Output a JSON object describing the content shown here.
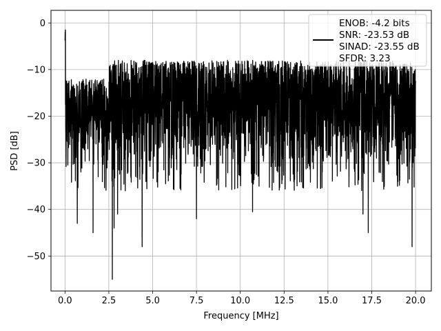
{
  "chart_data": {
    "type": "line",
    "title": "",
    "xlabel": "Frequency [MHz]",
    "ylabel": "PSD [dB]",
    "xlim": [
      -0.8,
      20.9
    ],
    "ylim": [
      -57.5,
      2.7
    ],
    "xticks": [
      0.0,
      2.5,
      5.0,
      7.5,
      10.0,
      12.5,
      15.0,
      17.5,
      20.0
    ],
    "xtick_labels": [
      "0.0",
      "2.5",
      "5.0",
      "7.5",
      "10.0",
      "12.5",
      "15.0",
      "17.5",
      "20.0"
    ],
    "yticks": [
      0,
      -10,
      -20,
      -30,
      -40,
      -50
    ],
    "ytick_labels": [
      "0",
      "−10",
      "−20",
      "−30",
      "−40",
      "−50"
    ],
    "grid": true,
    "legend_position": "top-right",
    "series": [
      {
        "name": "ENOB: -4.2 bits\nSNR: -23.53 dB\nSINAD: -23.55 dB\nSFDR: 3.23",
        "color": "#000000",
        "x_range_mhz": [
          0,
          20
        ],
        "peak": {
          "x": 0.0,
          "y": 0
        },
        "noise_floor_band_db": [
          -30,
          -8
        ],
        "notable_dips": [
          {
            "x": 0.7,
            "y": -43
          },
          {
            "x": 1.6,
            "y": -45
          },
          {
            "x": 2.7,
            "y": -55
          },
          {
            "x": 2.8,
            "y": -44
          },
          {
            "x": 3.0,
            "y": -41
          },
          {
            "x": 4.4,
            "y": -48
          },
          {
            "x": 7.5,
            "y": -42
          },
          {
            "x": 10.7,
            "y": -40.5
          },
          {
            "x": 17.0,
            "y": -41
          },
          {
            "x": 17.3,
            "y": -45
          },
          {
            "x": 19.8,
            "y": -48
          }
        ]
      }
    ]
  },
  "legend": {
    "lines": [
      "ENOB: -4.2 bits",
      "SNR: -23.53 dB",
      "SINAD: -23.55 dB",
      "SFDR: 3.23"
    ]
  }
}
